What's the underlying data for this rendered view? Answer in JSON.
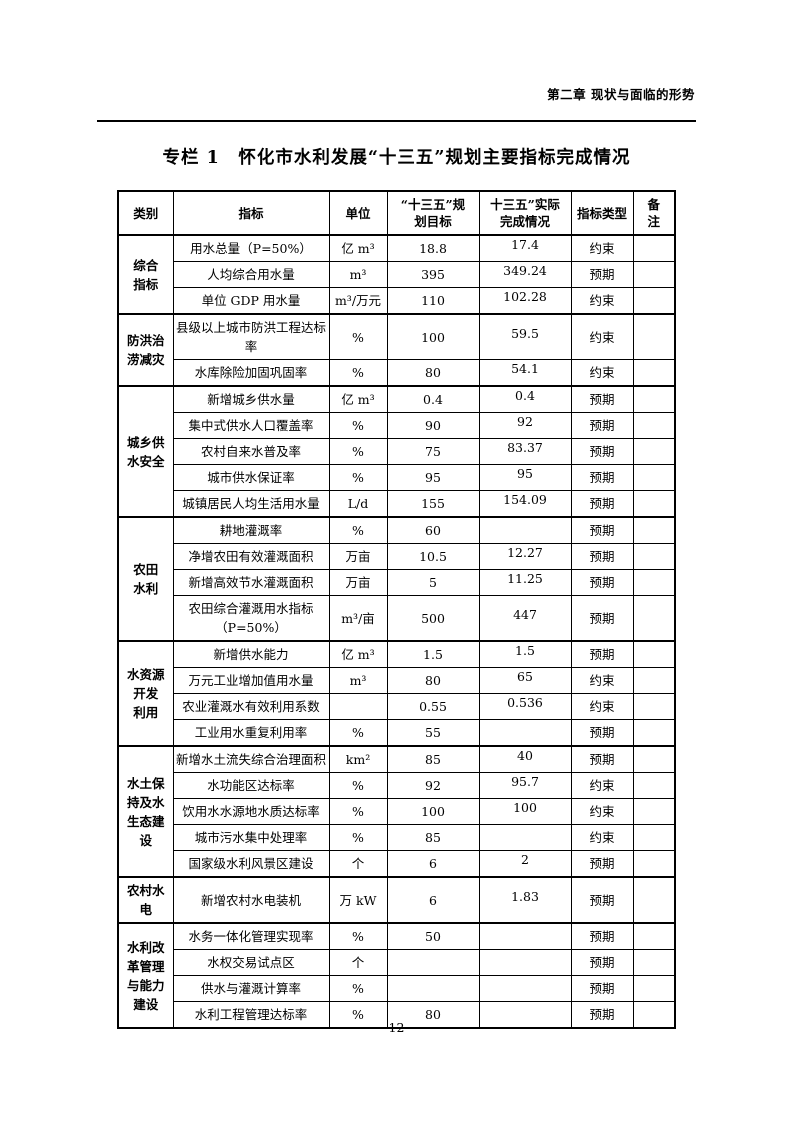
{
  "page": {
    "chapter_heading": "第二章 现状与面临的形势",
    "title": "专栏 1　怀化市水利发展“十三五”规划主要指标完成情况",
    "page_number": "12"
  },
  "table": {
    "headers": [
      "类别",
      "指标",
      "单位",
      "“十三五”规\n划目标",
      "十三五”实际\n完成情况",
      "指标类型",
      "备\n注"
    ],
    "sections": [
      {
        "category": "综合\n指标",
        "rows": [
          {
            "indicator": "用水总量（P=50%）",
            "unit": "亿 m³",
            "target": "18.8",
            "actual": "17.4",
            "type": "约束",
            "remark": ""
          },
          {
            "indicator": "人均综合用水量",
            "unit": "m³",
            "target": "395",
            "actual": "349.24",
            "type": "预期",
            "remark": ""
          },
          {
            "indicator": "单位 GDP 用水量",
            "unit": "m³/万元",
            "target": "110",
            "actual": "102.28",
            "type": "约束",
            "remark": ""
          }
        ]
      },
      {
        "category": "防洪治\n涝减灾",
        "rows": [
          {
            "indicator": "县级以上城市防洪工程达标率",
            "unit": "%",
            "target": "100",
            "actual": "59.5",
            "type": "约束",
            "remark": ""
          },
          {
            "indicator": "水库除险加固巩固率",
            "unit": "%",
            "target": "80",
            "actual": "54.1",
            "type": "约束",
            "remark": ""
          }
        ]
      },
      {
        "category": "城乡供\n水安全",
        "rows": [
          {
            "indicator": "新增城乡供水量",
            "unit": "亿 m³",
            "target": "0.4",
            "actual": "0.4",
            "type": "预期",
            "remark": ""
          },
          {
            "indicator": "集中式供水人口覆盖率",
            "unit": "%",
            "target": "90",
            "actual": "92",
            "type": "预期",
            "remark": ""
          },
          {
            "indicator": "农村自来水普及率",
            "unit": "%",
            "target": "75",
            "actual": "83.37",
            "type": "预期",
            "remark": ""
          },
          {
            "indicator": "城市供水保证率",
            "unit": "%",
            "target": "95",
            "actual": "95",
            "type": "预期",
            "remark": ""
          },
          {
            "indicator": "城镇居民人均生活用水量",
            "unit": "L/d",
            "target": "155",
            "actual": "154.09",
            "type": "预期",
            "remark": ""
          }
        ]
      },
      {
        "category": "农田\n水利",
        "rows": [
          {
            "indicator": "耕地灌溉率",
            "unit": "%",
            "target": "60",
            "actual": "",
            "type": "预期",
            "remark": ""
          },
          {
            "indicator": "净增农田有效灌溉面积",
            "unit": "万亩",
            "target": "10.5",
            "actual": "12.27",
            "type": "预期",
            "remark": ""
          },
          {
            "indicator": "新增高效节水灌溉面积",
            "unit": "万亩",
            "target": "5",
            "actual": "11.25",
            "type": "预期",
            "remark": ""
          },
          {
            "indicator": "农田综合灌溉用水指标（P=50%）",
            "unit": "m³/亩",
            "target": "500",
            "actual": "447",
            "type": "预期",
            "remark": ""
          }
        ]
      },
      {
        "category": "水资源\n开发\n利用",
        "rows": [
          {
            "indicator": "新增供水能力",
            "unit": "亿 m³",
            "target": "1.5",
            "actual": "1.5",
            "type": "预期",
            "remark": ""
          },
          {
            "indicator": "万元工业增加值用水量",
            "unit": "m³",
            "target": "80",
            "actual": "65",
            "type": "约束",
            "remark": ""
          },
          {
            "indicator": "农业灌溉水有效利用系数",
            "unit": "",
            "target": "0.55",
            "actual": "0.536",
            "type": "约束",
            "remark": ""
          },
          {
            "indicator": "工业用水重复利用率",
            "unit": "%",
            "target": "55",
            "actual": "",
            "type": "预期",
            "remark": ""
          }
        ]
      },
      {
        "category": "水土保\n持及水\n生态建\n设",
        "rows": [
          {
            "indicator": "新增水土流失综合治理面积",
            "unit": "km²",
            "target": "85",
            "actual": "40",
            "type": "预期",
            "remark": ""
          },
          {
            "indicator": "水功能区达标率",
            "unit": "%",
            "target": "92",
            "actual": "95.7",
            "type": "约束",
            "remark": ""
          },
          {
            "indicator": "饮用水水源地水质达标率",
            "unit": "%",
            "target": "100",
            "actual": "100",
            "type": "约束",
            "remark": ""
          },
          {
            "indicator": "城市污水集中处理率",
            "unit": "%",
            "target": "85",
            "actual": "",
            "type": "约束",
            "remark": ""
          },
          {
            "indicator": "国家级水利风景区建设",
            "unit": "个",
            "target": "6",
            "actual": "2",
            "type": "预期",
            "remark": ""
          }
        ]
      },
      {
        "category": "农村水\n电",
        "rows": [
          {
            "indicator": "新增农村水电装机",
            "unit": "万 kW",
            "target": "6",
            "actual": "1.83",
            "type": "预期",
            "remark": "",
            "tall": true
          }
        ]
      },
      {
        "category": "水利改\n革管理\n与能力\n建设",
        "rows": [
          {
            "indicator": "水务一体化管理实现率",
            "unit": "%",
            "target": "50",
            "actual": "",
            "type": "预期",
            "remark": ""
          },
          {
            "indicator": "水权交易试点区",
            "unit": "个",
            "target": "",
            "actual": "",
            "type": "预期",
            "remark": ""
          },
          {
            "indicator": "供水与灌溉计算率",
            "unit": "%",
            "target": "",
            "actual": "",
            "type": "预期",
            "remark": ""
          },
          {
            "indicator": "水利工程管理达标率",
            "unit": "%",
            "target": "80",
            "actual": "",
            "type": "预期",
            "remark": ""
          }
        ]
      }
    ]
  }
}
